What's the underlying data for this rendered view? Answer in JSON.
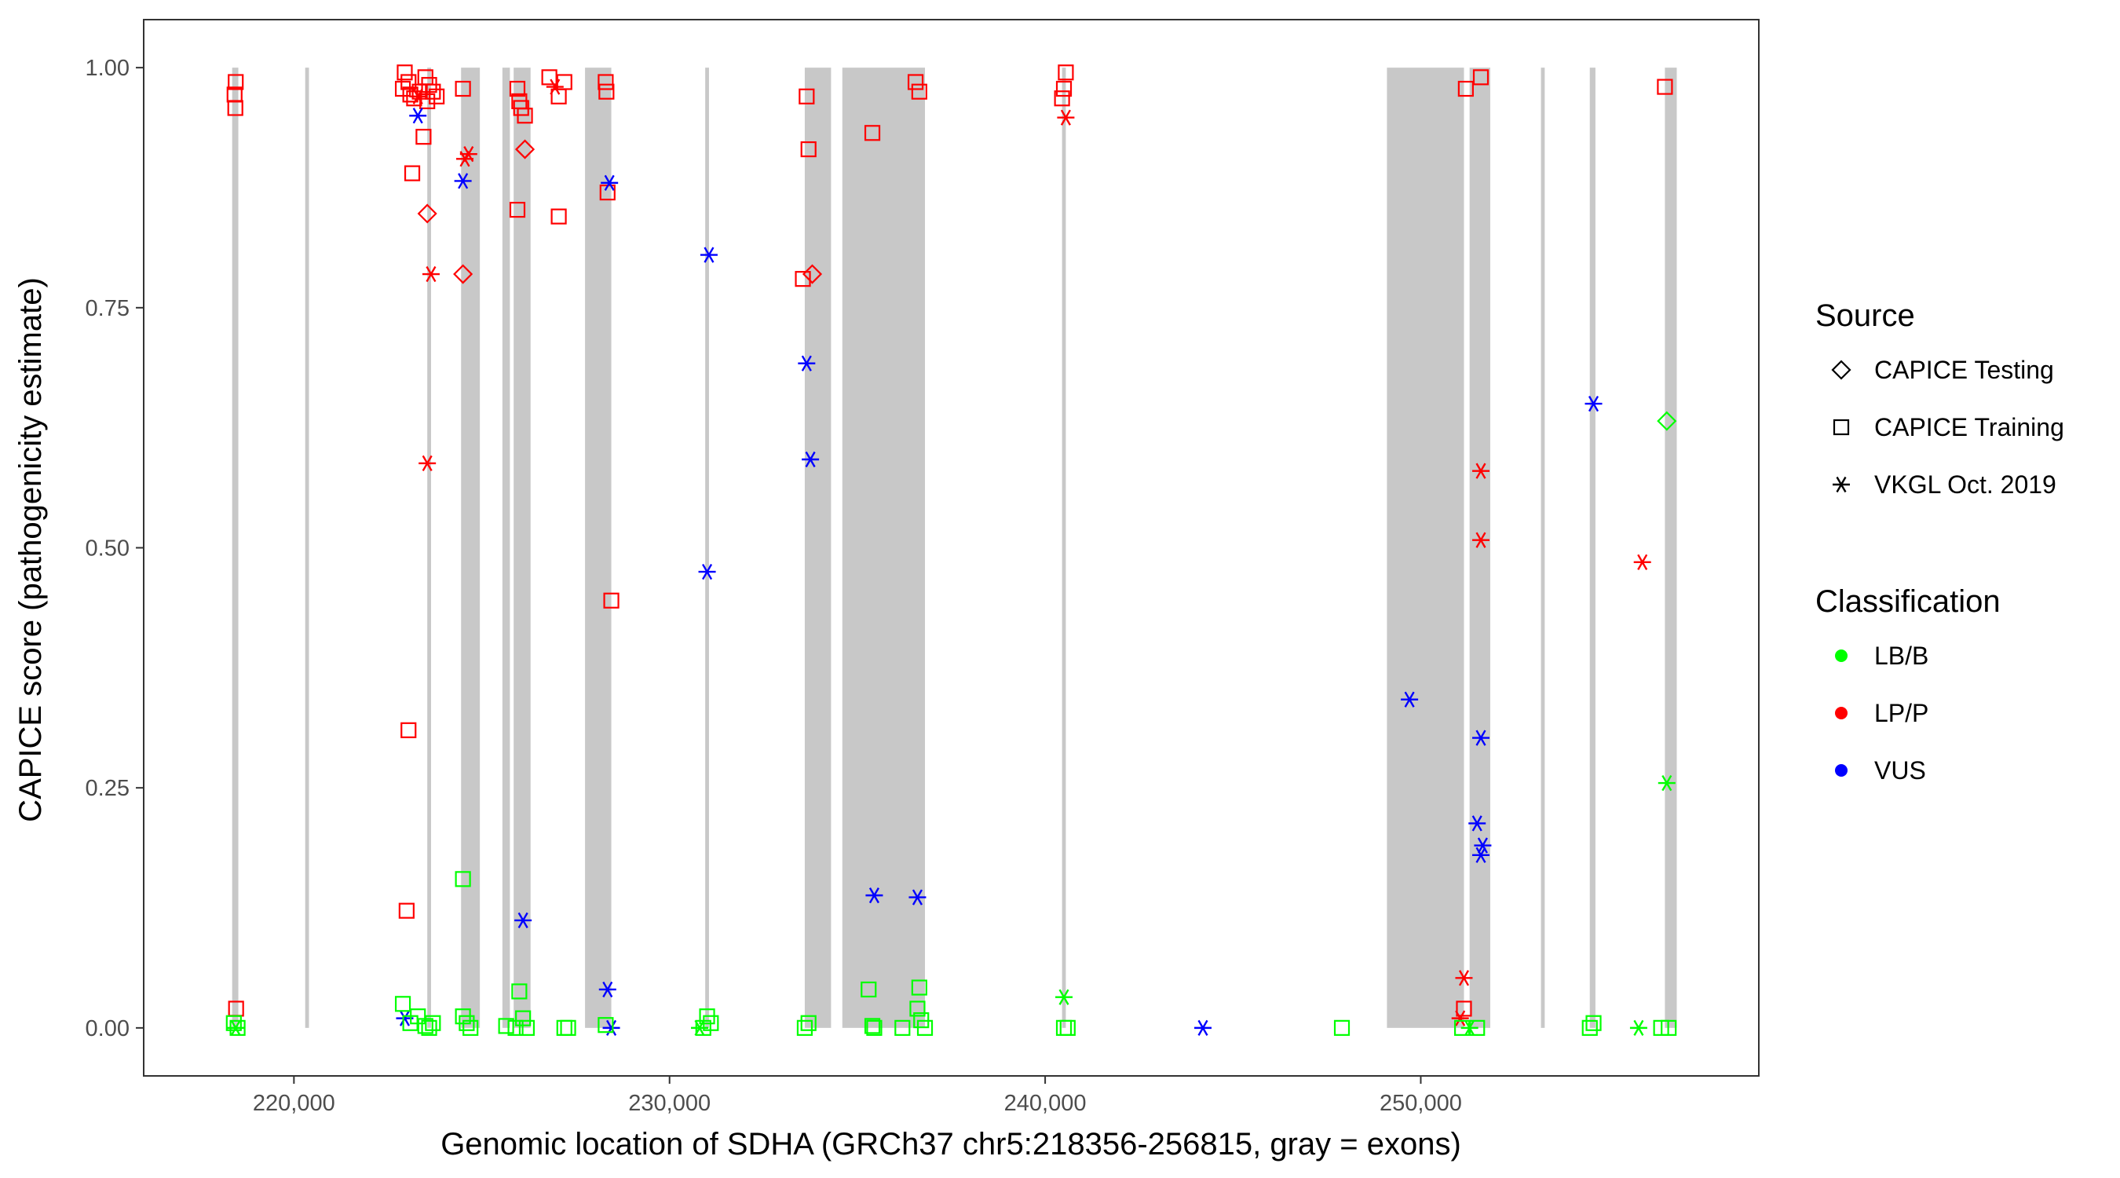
{
  "chart_data": {
    "type": "scatter",
    "title": "",
    "xlabel": "Genomic location of SDHA (GRCh37 chr5:218356-256815, gray = exons)",
    "ylabel": "CAPICE score (pathogenicity estimate)",
    "xlim": [
      216000,
      259000
    ],
    "ylim": [
      -0.05,
      1.05
    ],
    "x_ticks": [
      220000,
      230000,
      240000,
      250000
    ],
    "x_tick_labels": [
      "220,000",
      "230,000",
      "240,000",
      "250,000"
    ],
    "y_ticks": [
      0,
      0.25,
      0.5,
      0.75,
      1.0
    ],
    "y_tick_labels": [
      "0.00",
      "0.25",
      "0.50",
      "0.75",
      "1.00"
    ],
    "grid": false,
    "legend_position": "right",
    "exons": [
      [
        218356,
        218520
      ],
      [
        220300,
        220400
      ],
      [
        223550,
        223650
      ],
      [
        224450,
        224950
      ],
      [
        225550,
        225750
      ],
      [
        225850,
        226300
      ],
      [
        227750,
        228450
      ],
      [
        230950,
        231050
      ],
      [
        233600,
        234300
      ],
      [
        234600,
        236800
      ],
      [
        240450,
        240550
      ],
      [
        249100,
        251150
      ],
      [
        251300,
        251850
      ],
      [
        253200,
        253300
      ],
      [
        254500,
        254650
      ],
      [
        256500,
        256815
      ]
    ],
    "legend": {
      "source_title": "Source",
      "source_entries": [
        {
          "label": "CAPICE Testing",
          "shape": "diamond"
        },
        {
          "label": "CAPICE Training",
          "shape": "square"
        },
        {
          "label": "VKGL Oct. 2019",
          "shape": "asterisk"
        }
      ],
      "class_title": "Classification",
      "class_entries": [
        {
          "label": "LB/B",
          "color": "#00ff00"
        },
        {
          "label": "LP/P",
          "color": "#ff0000"
        },
        {
          "label": "VUS",
          "color": "#0000ff"
        }
      ]
    },
    "series": [
      {
        "shape": "square",
        "color": "#ff0000",
        "points": [
          [
            218450,
            0.985
          ],
          [
            218420,
            0.972
          ],
          [
            218440,
            0.958
          ],
          [
            218460,
            0.02
          ],
          [
            222950,
            0.995
          ],
          [
            223050,
            0.985
          ],
          [
            222900,
            0.978
          ],
          [
            223100,
            0.972
          ],
          [
            223200,
            0.968
          ],
          [
            223350,
            0.975
          ],
          [
            223500,
            0.99
          ],
          [
            223600,
            0.982
          ],
          [
            223700,
            0.975
          ],
          [
            223800,
            0.97
          ],
          [
            223550,
            0.965
          ],
          [
            223150,
            0.89
          ],
          [
            223450,
            0.928
          ],
          [
            223050,
            0.31
          ],
          [
            223000,
            0.122
          ],
          [
            224500,
            0.978
          ],
          [
            225950,
            0.978
          ],
          [
            226000,
            0.965
          ],
          [
            226050,
            0.958
          ],
          [
            226150,
            0.95
          ],
          [
            225950,
            0.852
          ],
          [
            226800,
            0.99
          ],
          [
            227200,
            0.985
          ],
          [
            227050,
            0.97
          ],
          [
            227050,
            0.845
          ],
          [
            228300,
            0.985
          ],
          [
            228320,
            0.975
          ],
          [
            228350,
            0.87
          ],
          [
            228450,
            0.445
          ],
          [
            233650,
            0.97
          ],
          [
            233700,
            0.915
          ],
          [
            233550,
            0.78
          ],
          [
            235400,
            0.932
          ],
          [
            236550,
            0.985
          ],
          [
            236650,
            0.975
          ],
          [
            240550,
            0.995
          ],
          [
            240500,
            0.978
          ],
          [
            240450,
            0.968
          ],
          [
            251200,
            0.978
          ],
          [
            251600,
            0.99
          ],
          [
            256500,
            0.98
          ],
          [
            251150,
            0.02
          ]
        ]
      },
      {
        "shape": "diamond",
        "color": "#ff0000",
        "points": [
          [
            223550,
            0.848
          ],
          [
            224500,
            0.785
          ],
          [
            226150,
            0.915
          ],
          [
            233800,
            0.785
          ]
        ]
      },
      {
        "shape": "asterisk",
        "color": "#ff0000",
        "points": [
          [
            223650,
            0.785
          ],
          [
            223550,
            0.588
          ],
          [
            224650,
            0.91
          ],
          [
            224550,
            0.905
          ],
          [
            226950,
            0.98
          ],
          [
            240550,
            0.948
          ],
          [
            251150,
            0.052
          ],
          [
            251600,
            0.58
          ],
          [
            251600,
            0.508
          ],
          [
            255900,
            0.485
          ],
          [
            251050,
            0.01
          ],
          [
            223300,
            0.97
          ]
        ]
      },
      {
        "shape": "asterisk",
        "color": "#0000ff",
        "points": [
          [
            223300,
            0.95
          ],
          [
            224500,
            0.882
          ],
          [
            228400,
            0.88
          ],
          [
            231050,
            0.805
          ],
          [
            233650,
            0.692
          ],
          [
            233750,
            0.592
          ],
          [
            231000,
            0.475
          ],
          [
            235450,
            0.138
          ],
          [
            236600,
            0.136
          ],
          [
            226100,
            0.112
          ],
          [
            228350,
            0.04
          ],
          [
            222950,
            0.01
          ],
          [
            228450,
            0.0
          ],
          [
            244200,
            0.0
          ],
          [
            249700,
            0.342
          ],
          [
            251600,
            0.302
          ],
          [
            251500,
            0.213
          ],
          [
            251650,
            0.19
          ],
          [
            251600,
            0.18
          ],
          [
            254600,
            0.65
          ]
        ]
      },
      {
        "shape": "square",
        "color": "#00ff00",
        "points": [
          [
            218400,
            0.005
          ],
          [
            218500,
            0.0
          ],
          [
            222900,
            0.025
          ],
          [
            223300,
            0.012
          ],
          [
            223100,
            0.005
          ],
          [
            223500,
            0.002
          ],
          [
            223700,
            0.005
          ],
          [
            223600,
            0.0
          ],
          [
            224500,
            0.155
          ],
          [
            224500,
            0.012
          ],
          [
            224600,
            0.005
          ],
          [
            224700,
            0.0
          ],
          [
            225650,
            0.002
          ],
          [
            226000,
            0.038
          ],
          [
            226100,
            0.01
          ],
          [
            226200,
            0.0
          ],
          [
            225900,
            0.0
          ],
          [
            227200,
            0.0
          ],
          [
            227300,
            0.0
          ],
          [
            228300,
            0.003
          ],
          [
            231000,
            0.012
          ],
          [
            231100,
            0.005
          ],
          [
            230900,
            0.0
          ],
          [
            233700,
            0.005
          ],
          [
            233600,
            0.0
          ],
          [
            235300,
            0.04
          ],
          [
            235400,
            0.002
          ],
          [
            235450,
            0.0
          ],
          [
            236650,
            0.042
          ],
          [
            236600,
            0.02
          ],
          [
            236700,
            0.008
          ],
          [
            236200,
            0.0
          ],
          [
            236800,
            0.0
          ],
          [
            240500,
            0.0
          ],
          [
            240600,
            0.0
          ],
          [
            247900,
            0.0
          ],
          [
            251100,
            0.0
          ],
          [
            251500,
            0.0
          ],
          [
            254600,
            0.005
          ],
          [
            254500,
            0.0
          ],
          [
            256600,
            0.0
          ],
          [
            256400,
            0.0
          ]
        ]
      },
      {
        "shape": "diamond",
        "color": "#00ff00",
        "points": [
          [
            256550,
            0.632
          ]
        ]
      },
      {
        "shape": "asterisk",
        "color": "#00ff00",
        "points": [
          [
            218450,
            0.0
          ],
          [
            240500,
            0.032
          ],
          [
            230800,
            0.0
          ],
          [
            255800,
            0.0
          ],
          [
            256550,
            0.255
          ],
          [
            251300,
            0.0
          ]
        ]
      }
    ]
  }
}
